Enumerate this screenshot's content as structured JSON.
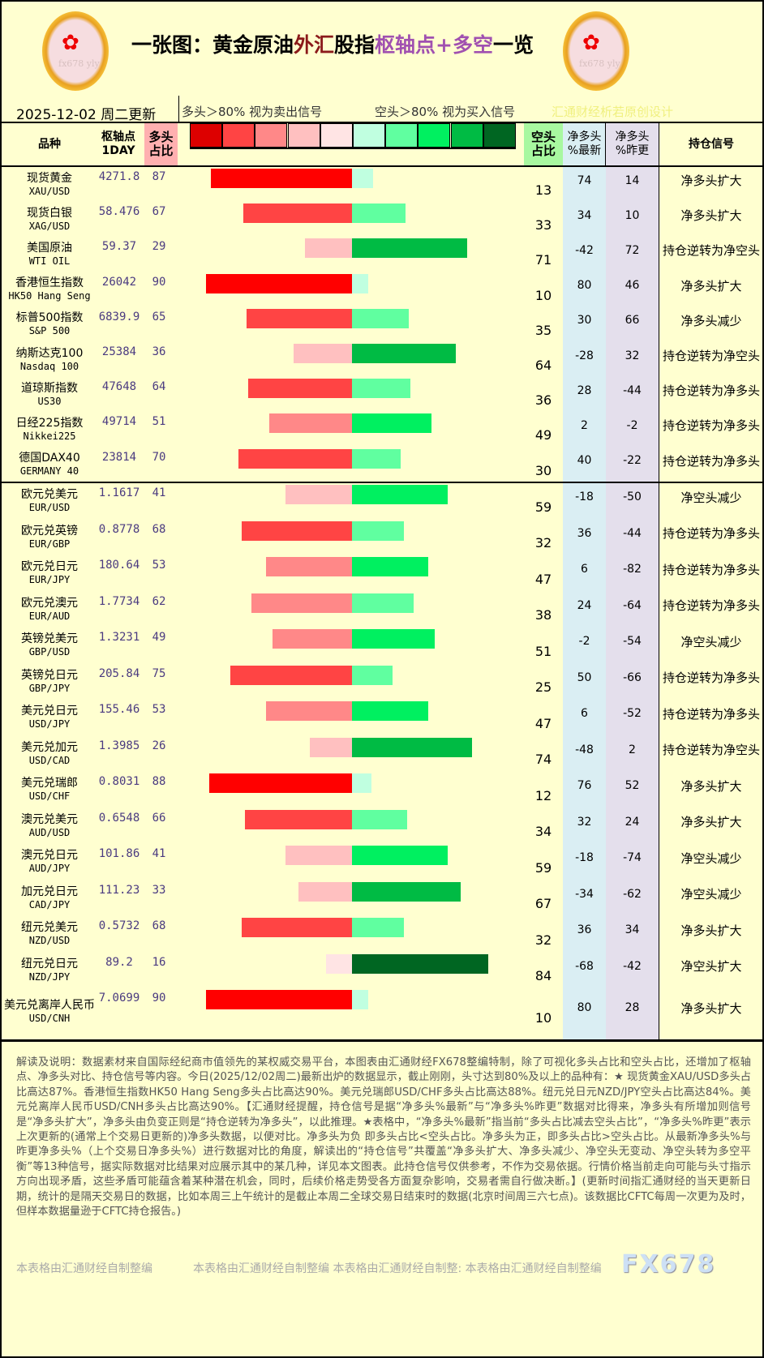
{
  "header": {
    "title_part1": "一张图：黄金原油",
    "title_part2": "外汇",
    "title_part3": "股指",
    "title_part4": "枢轴点+多空",
    "title_part5": "一览",
    "date": "2025-12-02 周二更新",
    "legend_long": "多头＞80% 视为卖出信号",
    "legend_short": "空头＞80% 视为买入信号",
    "credit": "汇通财经析若原创设计",
    "logo_text": "fx678 yly"
  },
  "columns": {
    "name": "品种",
    "pivot": "枢轴点\n1DAY",
    "long": "多头\n占比",
    "short": "空头\n占比",
    "net_latest": "净多头\n%最新",
    "net_prev": "净多头\n%昨更",
    "signal": "持仓信号"
  },
  "colors": {
    "scale": [
      "#dd0000",
      "#ff4444",
      "#ff8888",
      "#ffc0c0",
      "#ffe4e4",
      "#c0ffe0",
      "#60ffa0",
      "#00f060",
      "#00bb44",
      "#006622"
    ],
    "long_header_bg": "#ffb0b0",
    "short_header_bg": "#a8f8a0",
    "net_latest_bg": "#daeef3",
    "net_prev_bg": "#e4dfec"
  },
  "rows": [
    {
      "name": "现货黄金",
      "code": "XAU/USD",
      "pivot": "4271.8",
      "long": 87,
      "short": 13,
      "net_latest": 74,
      "net_prev": 14,
      "signal": "净多头扩大"
    },
    {
      "name": "现货白银",
      "code": "XAG/USD",
      "pivot": "58.476",
      "long": 67,
      "short": 33,
      "net_latest": 34,
      "net_prev": 10,
      "signal": "净多头扩大"
    },
    {
      "name": "美国原油",
      "code": "WTI OIL",
      "pivot": "59.37",
      "long": 29,
      "short": 71,
      "net_latest": -42,
      "net_prev": 72,
      "signal": "持仓逆转为净空头"
    },
    {
      "name": "香港恒生指数",
      "code": "HK50 Hang Seng",
      "pivot": "26042",
      "long": 90,
      "short": 10,
      "net_latest": 80,
      "net_prev": 46,
      "signal": "净多头扩大"
    },
    {
      "name": "标普500指数",
      "code": "S&P 500",
      "pivot": "6839.9",
      "long": 65,
      "short": 35,
      "net_latest": 30,
      "net_prev": 66,
      "signal": "净多头减少"
    },
    {
      "name": "纳斯达克100",
      "code": "Nasdaq 100",
      "pivot": "25384",
      "long": 36,
      "short": 64,
      "net_latest": -28,
      "net_prev": 32,
      "signal": "持仓逆转为净空头"
    },
    {
      "name": "道琼斯指数",
      "code": "US30",
      "pivot": "47648",
      "long": 64,
      "short": 36,
      "net_latest": 28,
      "net_prev": -44,
      "signal": "持仓逆转为净多头"
    },
    {
      "name": "日经225指数",
      "code": "Nikkei225",
      "pivot": "49714",
      "long": 51,
      "short": 49,
      "net_latest": 2,
      "net_prev": -2,
      "signal": "持仓逆转为净多头"
    },
    {
      "name": "德国DAX40",
      "code": "GERMANY 40",
      "pivot": "23814",
      "long": 70,
      "short": 30,
      "net_latest": 40,
      "net_prev": -22,
      "signal": "持仓逆转为净多头"
    },
    {
      "name": "欧元兑美元",
      "code": "EUR/USD",
      "pivot": "1.1617",
      "long": 41,
      "short": 59,
      "net_latest": -18,
      "net_prev": -50,
      "signal": "净空头减少"
    },
    {
      "name": "欧元兑英镑",
      "code": "EUR/GBP",
      "pivot": "0.8778",
      "long": 68,
      "short": 32,
      "net_latest": 36,
      "net_prev": -44,
      "signal": "持仓逆转为净多头"
    },
    {
      "name": "欧元兑日元",
      "code": "EUR/JPY",
      "pivot": "180.64",
      "long": 53,
      "short": 47,
      "net_latest": 6,
      "net_prev": -82,
      "signal": "持仓逆转为净多头"
    },
    {
      "name": "欧元兑澳元",
      "code": "EUR/AUD",
      "pivot": "1.7734",
      "long": 62,
      "short": 38,
      "net_latest": 24,
      "net_prev": -64,
      "signal": "持仓逆转为净多头"
    },
    {
      "name": "英镑兑美元",
      "code": "GBP/USD",
      "pivot": "1.3231",
      "long": 49,
      "short": 51,
      "net_latest": -2,
      "net_prev": -54,
      "signal": "净空头减少"
    },
    {
      "name": "英镑兑日元",
      "code": "GBP/JPY",
      "pivot": "205.84",
      "long": 75,
      "short": 25,
      "net_latest": 50,
      "net_prev": -66,
      "signal": "持仓逆转为净多头"
    },
    {
      "name": "美元兑日元",
      "code": "USD/JPY",
      "pivot": "155.46",
      "long": 53,
      "short": 47,
      "net_latest": 6,
      "net_prev": -52,
      "signal": "持仓逆转为净多头"
    },
    {
      "name": "美元兑加元",
      "code": "USD/CAD",
      "pivot": "1.3985",
      "long": 26,
      "short": 74,
      "net_latest": -48,
      "net_prev": 2,
      "signal": "持仓逆转为净空头"
    },
    {
      "name": "美元兑瑞郎",
      "code": "USD/CHF",
      "pivot": "0.8031",
      "long": 88,
      "short": 12,
      "net_latest": 76,
      "net_prev": 52,
      "signal": "净多头扩大"
    },
    {
      "name": "澳元兑美元",
      "code": "AUD/USD",
      "pivot": "0.6548",
      "long": 66,
      "short": 34,
      "net_latest": 32,
      "net_prev": 24,
      "signal": "净多头扩大"
    },
    {
      "name": "澳元兑日元",
      "code": "AUD/JPY",
      "pivot": "101.86",
      "long": 41,
      "short": 59,
      "net_latest": -18,
      "net_prev": -74,
      "signal": "净空头减少"
    },
    {
      "name": "加元兑日元",
      "code": "CAD/JPY",
      "pivot": "111.23",
      "long": 33,
      "short": 67,
      "net_latest": -34,
      "net_prev": -62,
      "signal": "净空头减少"
    },
    {
      "name": "纽元兑美元",
      "code": "NZD/USD",
      "pivot": "0.5732",
      "long": 68,
      "short": 32,
      "net_latest": 36,
      "net_prev": 34,
      "signal": "净多头扩大"
    },
    {
      "name": "纽元兑日元",
      "code": "NZD/JPY",
      "pivot": "89.2",
      "long": 16,
      "short": 84,
      "net_latest": -68,
      "net_prev": -42,
      "signal": "净空头扩大"
    },
    {
      "name": "美元兑离岸人民币",
      "code": "USD/CNH",
      "pivot": "7.0699",
      "long": 90,
      "short": 10,
      "net_latest": 80,
      "net_prev": 28,
      "signal": "净多头扩大"
    }
  ],
  "notes": "解读及说明：数据素材来自国际经纪商市值领先的某权威交易平台，本图表由汇通财经FX678整编特制，除了可视化多头占比和空头占比，还增加了枢轴点、净多头对比、持仓信号等内容。今日(2025/12/02周二)最新出炉的数据显示，截止刚刚，头寸达到80%及以上的品种有：★ 现货黄金XAU/USD多头占比高达87%。香港恒生指数HK50 Hang Seng多头占比高达90%。美元兑瑞郎USD/CHF多头占比高达88%。纽元兑日元NZD/JPY空头占比高达84%。美元兑离岸人民币USD/CNH多头占比高达90%。【汇通财经提醒，持仓信号是据“净多头%最新”与“净多头%昨更”数据对比得来，净多头有所增加则信号是“净多头扩大”，净多头由负变正则是“持仓逆转为净多头”，以此推理。★表格中，“净多头%最新”指当前“多头占比减去空头占比”，“净多头%昨更”表示上次更新的(通常上个交易日更新的)净多头数据，以便对比。净多头为负 即多头占比<空头占比。净多头为正，即多头占比>空头占比。从最新净多头%与昨更净多头%（上个交易日净多头%）进行数据对比的角度，解读出的“持仓信号”共覆盖“净多头扩大、净多头减少、净空头无变动、净空头转为多空平衡”等13种信号，据实际数据对比结果对应展示其中的某几种，详见本文图表。此持仓信号仅供参考，不作为交易依据。行情价格当前走向可能与头寸指示方向出现矛盾，这些矛盾可能蕴含着某种潜在机会，同时，后续价格走势受各方面复杂影响，交易者需自行做决断。】(更新时间指汇通财经的当天更新日期，统计的是隔天交易日的数据，比如本周三上午统计的是截止本周二全球交易日结束时的数据(北京时间周三六七点)。该数据比CFTC每周一次更为及时，但样本数据量逊于CFTC持仓报告。)",
  "footer": {
    "credit1": "本表格由汇通财经自制整编",
    "credit2": "本表格由汇通财经自制整编  本表格由汇通财经自制整: 本表格由汇通财经自制整编",
    "brand": "FX678"
  }
}
